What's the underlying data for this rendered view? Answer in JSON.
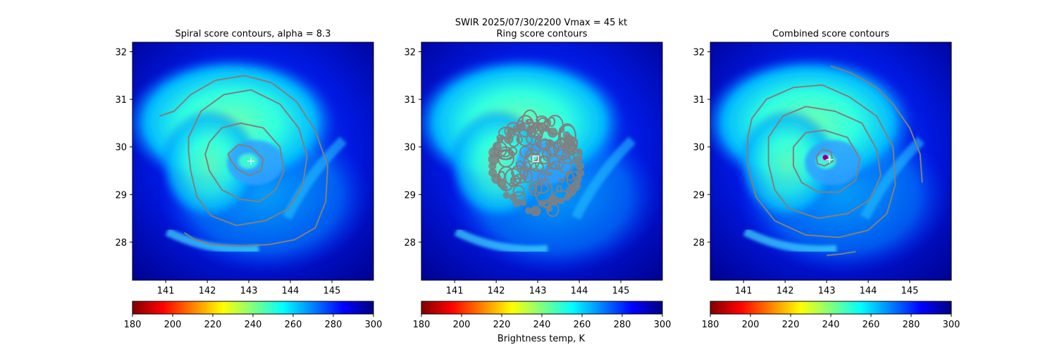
{
  "figure": {
    "suptitle_line1": "SWIR  2025/07/30/2200    Vmax = 45 kt",
    "colorbar_label": "Brightness temp, K"
  },
  "colorscale": {
    "min": 180,
    "max": 300,
    "ticks": [
      180,
      200,
      220,
      240,
      260,
      280,
      300
    ],
    "stops": [
      "#800000",
      "#ff0000",
      "#ff8000",
      "#ffff00",
      "#80ff80",
      "#00ffff",
      "#0080ff",
      "#0000ff",
      "#000080"
    ]
  },
  "chart_data": [
    {
      "type": "heatmap",
      "title": "Spiral score contours, alpha =  8.3",
      "x_ticks": [
        141,
        142,
        143,
        144,
        145
      ],
      "y_ticks": [
        28,
        29,
        30,
        31,
        32
      ],
      "xlim": [
        140.2,
        146.0
      ],
      "ylim": [
        27.2,
        32.2
      ],
      "contour_color": "#808080",
      "center_marker": {
        "symbol": "+",
        "lon": 143.05,
        "lat": 29.7,
        "color": "#ffffff"
      },
      "contours": [
        {
          "name": "c1",
          "points": [
            [
              142.5,
              29.85
            ],
            [
              142.75,
              30.05
            ],
            [
              143.05,
              30.0
            ],
            [
              143.35,
              29.75
            ],
            [
              143.3,
              29.5
            ],
            [
              143.0,
              29.4
            ],
            [
              142.7,
              29.55
            ],
            [
              142.55,
              29.75
            ]
          ]
        },
        {
          "name": "c2",
          "points": [
            [
              142.05,
              30.1
            ],
            [
              142.35,
              30.4
            ],
            [
              142.8,
              30.5
            ],
            [
              143.35,
              30.4
            ],
            [
              143.75,
              30.0
            ],
            [
              143.85,
              29.5
            ],
            [
              143.65,
              29.1
            ],
            [
              143.25,
              28.85
            ],
            [
              142.8,
              28.9
            ],
            [
              142.35,
              29.1
            ],
            [
              142.05,
              29.5
            ],
            [
              141.95,
              29.85
            ]
          ]
        },
        {
          "name": "c3",
          "points": [
            [
              141.55,
              30.2
            ],
            [
              141.85,
              30.75
            ],
            [
              142.4,
              31.1
            ],
            [
              143.05,
              31.2
            ],
            [
              143.75,
              30.9
            ],
            [
              144.2,
              30.4
            ],
            [
              144.4,
              29.8
            ],
            [
              144.3,
              29.2
            ],
            [
              143.95,
              28.7
            ],
            [
              143.4,
              28.45
            ],
            [
              142.7,
              28.35
            ],
            [
              142.1,
              28.55
            ],
            [
              141.75,
              28.95
            ],
            [
              141.6,
              29.5
            ],
            [
              141.55,
              29.9
            ]
          ]
        },
        {
          "name": "c4",
          "open": true,
          "points": [
            [
              140.85,
              30.65
            ],
            [
              141.2,
              30.75
            ],
            [
              141.6,
              31.1
            ],
            [
              142.2,
              31.4
            ],
            [
              142.9,
              31.5
            ],
            [
              143.55,
              31.35
            ],
            [
              144.15,
              30.95
            ],
            [
              144.6,
              30.35
            ],
            [
              144.9,
              29.6
            ],
            [
              144.85,
              28.85
            ],
            [
              144.6,
              28.3
            ],
            [
              144.1,
              28.05
            ],
            [
              143.5,
              27.95
            ],
            [
              142.8,
              27.92
            ],
            [
              142.1,
              27.95
            ],
            [
              141.7,
              28.05
            ],
            [
              141.45,
              28.2
            ]
          ]
        }
      ]
    },
    {
      "type": "heatmap",
      "title": "Ring score contours",
      "x_ticks": [
        141,
        142,
        143,
        144,
        145
      ],
      "y_ticks": [
        28,
        29,
        30,
        31,
        32
      ],
      "xlim": [
        140.2,
        146.0
      ],
      "ylim": [
        27.2,
        32.2
      ],
      "contour_color": "#808080",
      "center_marker": {
        "symbol": "square",
        "lon": 142.95,
        "lat": 29.75,
        "color": "#ffffff"
      },
      "ring_region": {
        "lon": 142.95,
        "lat": 29.6,
        "radius_deg": 1.1
      }
    },
    {
      "type": "heatmap",
      "title": "Combined score contours",
      "x_ticks": [
        141,
        142,
        143,
        144,
        145
      ],
      "y_ticks": [
        28,
        29,
        30,
        31,
        32
      ],
      "xlim": [
        140.2,
        146.0
      ],
      "ylim": [
        27.2,
        32.2
      ],
      "contour_color": "#808080",
      "center_marker": {
        "symbol": "dot",
        "lon": 142.97,
        "lat": 29.78,
        "color": "#800080"
      },
      "contours": [
        {
          "name": "c1",
          "points": [
            [
              142.75,
              29.8
            ],
            [
              142.9,
              29.95
            ],
            [
              143.1,
              29.9
            ],
            [
              143.15,
              29.7
            ],
            [
              142.95,
              29.6
            ],
            [
              142.78,
              29.65
            ]
          ]
        },
        {
          "name": "c2",
          "points": [
            [
              142.2,
              30.0
            ],
            [
              142.5,
              30.3
            ],
            [
              142.95,
              30.35
            ],
            [
              143.5,
              30.2
            ],
            [
              143.8,
              29.75
            ],
            [
              143.7,
              29.3
            ],
            [
              143.3,
              29.05
            ],
            [
              142.8,
              29.05
            ],
            [
              142.4,
              29.25
            ],
            [
              142.2,
              29.6
            ]
          ]
        },
        {
          "name": "c3",
          "points": [
            [
              141.6,
              30.2
            ],
            [
              141.95,
              30.65
            ],
            [
              142.5,
              30.85
            ],
            [
              143.2,
              30.75
            ],
            [
              143.85,
              30.5
            ],
            [
              144.2,
              29.95
            ],
            [
              144.3,
              29.4
            ],
            [
              144.05,
              28.9
            ],
            [
              143.5,
              28.6
            ],
            [
              142.8,
              28.5
            ],
            [
              142.1,
              28.7
            ],
            [
              141.75,
              29.1
            ],
            [
              141.6,
              29.65
            ]
          ]
        },
        {
          "name": "c4",
          "open": true,
          "points": [
            [
              143.1,
              31.7
            ],
            [
              143.6,
              31.55
            ],
            [
              144.2,
              31.25
            ],
            [
              144.6,
              30.9
            ],
            [
              145.0,
              30.4
            ],
            [
              145.25,
              29.85
            ],
            [
              145.3,
              29.25
            ]
          ]
        },
        {
          "name": "c5",
          "points": [
            [
              141.2,
              30.6
            ],
            [
              141.55,
              31.0
            ],
            [
              142.2,
              31.25
            ],
            [
              142.9,
              31.3
            ],
            [
              143.55,
              31.05
            ],
            [
              144.2,
              30.65
            ],
            [
              144.6,
              30.0
            ],
            [
              144.65,
              29.2
            ],
            [
              144.45,
              28.6
            ],
            [
              144.0,
              28.25
            ],
            [
              143.3,
              28.1
            ],
            [
              142.5,
              28.15
            ],
            [
              141.75,
              28.45
            ],
            [
              141.3,
              28.95
            ],
            [
              141.1,
              29.6
            ],
            [
              141.1,
              30.2
            ]
          ]
        },
        {
          "name": "c6",
          "open": true,
          "points": [
            [
              143.0,
              27.72
            ],
            [
              143.35,
              27.75
            ],
            [
              143.7,
              27.8
            ]
          ]
        }
      ]
    }
  ]
}
